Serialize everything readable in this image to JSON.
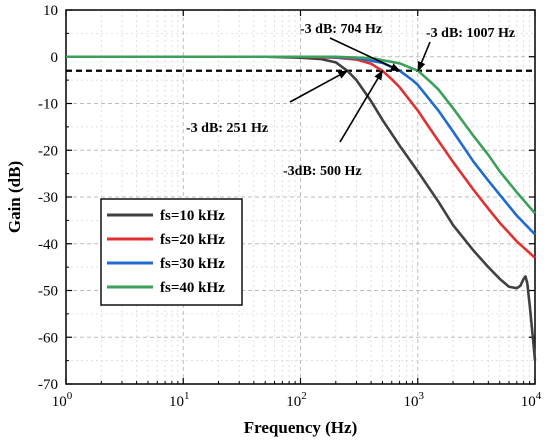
{
  "chart_data": {
    "type": "line",
    "title": "",
    "xlabel": "Frequency (Hz)",
    "ylabel": "Gain (dB)",
    "xscale": "log",
    "xlim": [
      1,
      10000
    ],
    "ylim": [
      -70,
      10
    ],
    "x_ticks": [
      {
        "value": 1,
        "base": "10",
        "exp": "0"
      },
      {
        "value": 10,
        "base": "10",
        "exp": "1"
      },
      {
        "value": 100,
        "base": "10",
        "exp": "2"
      },
      {
        "value": 1000,
        "base": "10",
        "exp": "3"
      },
      {
        "value": 10000,
        "base": "10",
        "exp": "4"
      }
    ],
    "y_ticks": [
      10,
      0,
      -10,
      -20,
      -30,
      -40,
      -50,
      -60,
      -70
    ],
    "grid": "dashed",
    "reference_line": {
      "y": -3,
      "style": "dashed",
      "color": "#000000"
    },
    "legend_position": "lower-left",
    "series": [
      {
        "name": "fs=10 kHz",
        "color": "#404040",
        "points": [
          [
            1,
            0
          ],
          [
            50,
            0
          ],
          [
            100,
            -0.2
          ],
          [
            150,
            -0.5
          ],
          [
            200,
            -1.2
          ],
          [
            251,
            -3
          ],
          [
            300,
            -5
          ],
          [
            400,
            -9.5
          ],
          [
            500,
            -13.5
          ],
          [
            700,
            -19
          ],
          [
            1000,
            -24.5
          ],
          [
            1500,
            -31
          ],
          [
            2000,
            -36
          ],
          [
            3000,
            -41.5
          ],
          [
            4000,
            -45
          ],
          [
            5000,
            -47.5
          ],
          [
            6000,
            -49.2
          ],
          [
            7000,
            -49.5
          ],
          [
            7500,
            -49
          ],
          [
            8000,
            -47.5
          ],
          [
            8300,
            -47
          ],
          [
            8600,
            -48.5
          ],
          [
            9000,
            -53
          ],
          [
            9500,
            -59
          ],
          [
            10000,
            -65
          ]
        ]
      },
      {
        "name": "fs=20 kHz",
        "color": "#e03030",
        "points": [
          [
            1,
            0
          ],
          [
            100,
            0
          ],
          [
            200,
            -0.2
          ],
          [
            300,
            -0.6
          ],
          [
            400,
            -1.5
          ],
          [
            500,
            -3
          ],
          [
            600,
            -4.8
          ],
          [
            700,
            -6.5
          ],
          [
            1000,
            -11.5
          ],
          [
            1500,
            -18
          ],
          [
            2000,
            -22.5
          ],
          [
            3000,
            -28.5
          ],
          [
            4000,
            -32.5
          ],
          [
            5000,
            -35.5
          ],
          [
            7000,
            -39.5
          ],
          [
            10000,
            -43
          ]
        ]
      },
      {
        "name": "fs=30 kHz",
        "color": "#1f6bd0",
        "points": [
          [
            1,
            0
          ],
          [
            150,
            0
          ],
          [
            300,
            -0.3
          ],
          [
            500,
            -1.3
          ],
          [
            704,
            -3
          ],
          [
            900,
            -5
          ],
          [
            1000,
            -6
          ],
          [
            1500,
            -11.5
          ],
          [
            2000,
            -16
          ],
          [
            3000,
            -22.5
          ],
          [
            4000,
            -26.5
          ],
          [
            5000,
            -29.5
          ],
          [
            7000,
            -34
          ],
          [
            10000,
            -38
          ]
        ]
      },
      {
        "name": "fs=40 kHz",
        "color": "#3aa05a",
        "points": [
          [
            1,
            0
          ],
          [
            200,
            0
          ],
          [
            400,
            -0.3
          ],
          [
            700,
            -1.4
          ],
          [
            1007,
            -3
          ],
          [
            1300,
            -5.5
          ],
          [
            1500,
            -7
          ],
          [
            2000,
            -11
          ],
          [
            3000,
            -17
          ],
          [
            4000,
            -21
          ],
          [
            5000,
            -24.5
          ],
          [
            7000,
            -29
          ],
          [
            10000,
            -33.5
          ]
        ]
      }
    ],
    "annotations": [
      {
        "text": "-3 dB: 704 Hz",
        "point": [
          704,
          -3
        ]
      },
      {
        "text": "-3 dB: 1007 Hz",
        "point": [
          1007,
          -3
        ]
      },
      {
        "text": "-3 dB: 251 Hz",
        "point": [
          251,
          -3
        ]
      },
      {
        "text": "-3dB: 500 Hz",
        "point": [
          500,
          -3
        ]
      }
    ]
  }
}
